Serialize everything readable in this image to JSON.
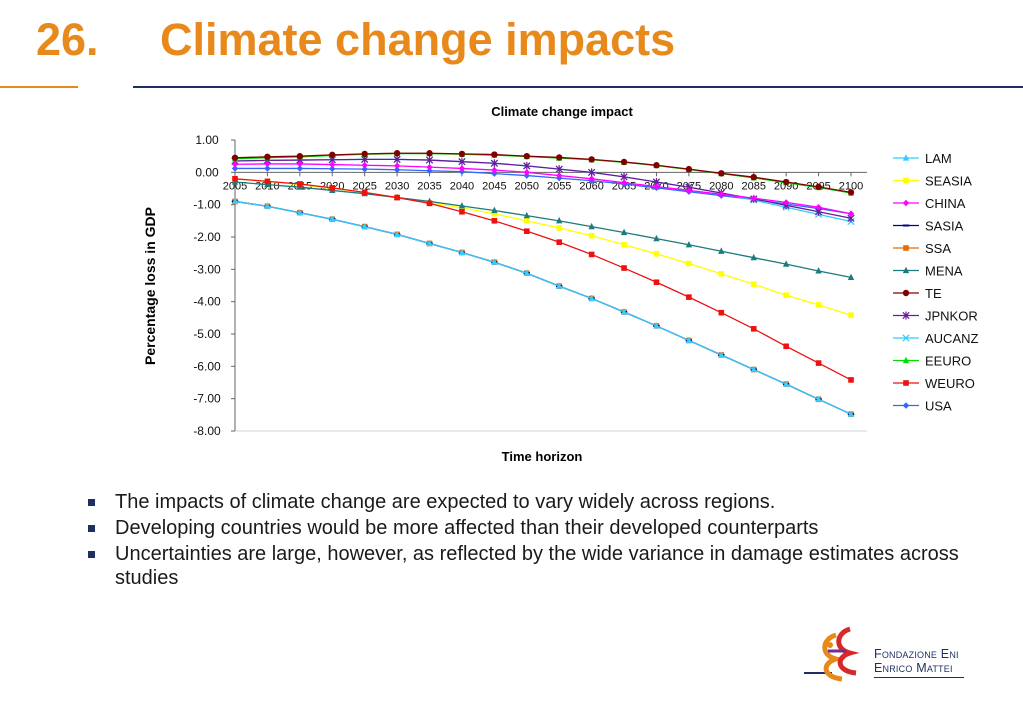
{
  "slide": {
    "number": "26.",
    "title": "Climate change impacts"
  },
  "bullets": [
    "The impacts of climate change are expected to vary widely across regions.",
    "Developing countries would be more affected than their developed counterparts",
    "Uncertainties are large, however, as reflected by the wide variance in damage estimates across studies"
  ],
  "logo": {
    "line1": "Fondazione Eni",
    "line2": "Enrico Mattei"
  },
  "chart_data": {
    "type": "line",
    "title": "Climate change impact",
    "xlabel": "Time horizon",
    "ylabel": "Percentage loss in GDP",
    "ylim": [
      -8,
      1
    ],
    "yticks": [
      "1.00",
      "0.00",
      "-1.00",
      "-2.00",
      "-3.00",
      "-4.00",
      "-5.00",
      "-6.00",
      "-7.00",
      "-8.00"
    ],
    "x": [
      "2005",
      "2010",
      "2015",
      "2020",
      "2025",
      "2030",
      "2035",
      "2040",
      "2045",
      "2050",
      "2055",
      "2060",
      "2065",
      "2070",
      "2075",
      "2080",
      "2085",
      "2090",
      "2095",
      "2100"
    ],
    "grid": false,
    "legend": "right",
    "series": [
      {
        "name": "LAM",
        "color": "#33ccff",
        "marker": "triangle",
        "values": [
          -0.9,
          -1.05,
          -1.25,
          -1.45,
          -1.68,
          -1.92,
          -2.2,
          -2.48,
          -2.78,
          -3.12,
          -3.52,
          -3.9,
          -4.32,
          -4.75,
          -5.2,
          -5.65,
          -6.1,
          -6.55,
          -7.02,
          -7.48
        ]
      },
      {
        "name": "SEASIA",
        "color": "#ffff00",
        "marker": "square",
        "values": [
          -0.2,
          -0.28,
          -0.38,
          -0.5,
          -0.62,
          -0.78,
          -0.94,
          -1.1,
          -1.28,
          -1.5,
          -1.72,
          -1.96,
          -2.24,
          -2.52,
          -2.82,
          -3.14,
          -3.46,
          -3.8,
          -4.1,
          -4.42
        ]
      },
      {
        "name": "CHINA",
        "color": "#ff00ff",
        "marker": "diamond",
        "values": [
          0.25,
          0.26,
          0.26,
          0.24,
          0.22,
          0.2,
          0.16,
          0.12,
          0.07,
          0.0,
          -0.1,
          -0.2,
          -0.32,
          -0.44,
          -0.56,
          -0.68,
          -0.8,
          -0.93,
          -1.08,
          -1.28
        ]
      },
      {
        "name": "SASIA",
        "color": "#000080",
        "marker": "dash",
        "values": [
          -0.9,
          -1.05,
          -1.25,
          -1.45,
          -1.68,
          -1.92,
          -2.2,
          -2.48,
          -2.78,
          -3.12,
          -3.52,
          -3.9,
          -4.32,
          -4.75,
          -5.2,
          -5.65,
          -6.1,
          -6.55,
          -7.02,
          -7.48
        ]
      },
      {
        "name": "SSA",
        "color": "#e46c0a",
        "marker": "square",
        "values": [
          -0.9,
          -1.05,
          -1.25,
          -1.45,
          -1.68,
          -1.92,
          -2.2,
          -2.48,
          -2.78,
          -3.12,
          -3.52,
          -3.9,
          -4.32,
          -4.75,
          -5.2,
          -5.65,
          -6.1,
          -6.55,
          -7.02,
          -7.48
        ]
      },
      {
        "name": "MENA",
        "color": "#1e7b7b",
        "marker": "triangle",
        "values": [
          -0.3,
          -0.38,
          -0.46,
          -0.56,
          -0.66,
          -0.78,
          -0.9,
          -1.04,
          -1.18,
          -1.34,
          -1.5,
          -1.68,
          -1.86,
          -2.05,
          -2.24,
          -2.44,
          -2.64,
          -2.84,
          -3.05,
          -3.25
        ]
      },
      {
        "name": "TE",
        "color": "#800000",
        "marker": "circle",
        "values": [
          0.45,
          0.48,
          0.5,
          0.54,
          0.57,
          0.59,
          0.59,
          0.57,
          0.55,
          0.5,
          0.46,
          0.4,
          0.32,
          0.22,
          0.1,
          -0.03,
          -0.15,
          -0.3,
          -0.45,
          -0.62
        ]
      },
      {
        "name": "JPNKOR",
        "color": "#6a1b9a",
        "marker": "star",
        "values": [
          0.35,
          0.37,
          0.38,
          0.39,
          0.4,
          0.4,
          0.38,
          0.33,
          0.28,
          0.2,
          0.1,
          0.0,
          -0.14,
          -0.3,
          -0.46,
          -0.64,
          -0.82,
          -1.02,
          -1.22,
          -1.42
        ]
      },
      {
        "name": "AUCANZ",
        "color": "#33ccff",
        "marker": "cross",
        "values": [
          0.35,
          0.37,
          0.38,
          0.39,
          0.4,
          0.4,
          0.38,
          0.33,
          0.28,
          0.2,
          0.1,
          0.0,
          -0.14,
          -0.3,
          -0.46,
          -0.64,
          -0.86,
          -1.08,
          -1.3,
          -1.52
        ]
      },
      {
        "name": "EEURO",
        "color": "#00dd00",
        "marker": "triangle",
        "values": [
          0.42,
          0.45,
          0.48,
          0.52,
          0.56,
          0.58,
          0.58,
          0.56,
          0.53,
          0.49,
          0.44,
          0.39,
          0.31,
          0.21,
          0.09,
          -0.04,
          -0.17,
          -0.32,
          -0.47,
          -0.64
        ]
      },
      {
        "name": "WEURO",
        "color": "#ee1111",
        "marker": "square",
        "values": [
          -0.2,
          -0.28,
          -0.36,
          -0.48,
          -0.62,
          -0.78,
          -0.96,
          -1.22,
          -1.5,
          -1.82,
          -2.16,
          -2.54,
          -2.96,
          -3.4,
          -3.86,
          -4.34,
          -4.84,
          -5.38,
          -5.9,
          -6.42
        ]
      },
      {
        "name": "USA",
        "color": "#3366ff",
        "marker": "diamond",
        "values": [
          0.12,
          0.12,
          0.12,
          0.11,
          0.1,
          0.08,
          0.05,
          0.02,
          -0.04,
          -0.1,
          -0.18,
          -0.26,
          -0.36,
          -0.48,
          -0.6,
          -0.72,
          -0.84,
          -0.98,
          -1.12,
          -1.28
        ]
      }
    ]
  }
}
